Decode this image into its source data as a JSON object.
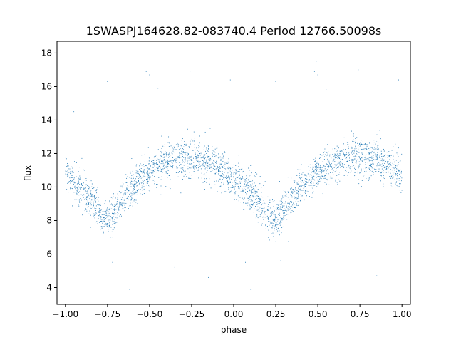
{
  "chart_data": {
    "type": "scatter",
    "title": "1SWASPJ164628.82-083740.4 Period 12766.50098s",
    "xlabel": "phase",
    "ylabel": "flux",
    "xlim": [
      -1.05,
      1.05
    ],
    "ylim": [
      3.0,
      18.7
    ],
    "xticks": [
      -1.0,
      -0.75,
      -0.5,
      -0.25,
      0.0,
      0.25,
      0.5,
      0.75,
      1.0
    ],
    "xtick_labels": [
      "−1.00",
      "−0.75",
      "−0.50",
      "−0.25",
      "0.00",
      "0.25",
      "0.50",
      "0.75",
      "1.00"
    ],
    "yticks": [
      4,
      6,
      8,
      10,
      12,
      14,
      16,
      18
    ],
    "ytick_labels": [
      "4",
      "6",
      "8",
      "10",
      "12",
      "14",
      "16",
      "18"
    ],
    "grid": false,
    "marker_color": "#1f77b4",
    "series": [
      {
        "x": [
          -1.0,
          -0.95,
          -0.9,
          -0.85,
          -0.8,
          -0.76,
          -0.7,
          -0.65,
          -0.6,
          -0.55,
          -0.5,
          -0.45,
          -0.4,
          -0.35,
          -0.3,
          -0.25,
          -0.2,
          -0.15,
          -0.1,
          -0.05,
          0.0,
          0.05,
          0.1,
          0.15,
          0.2,
          0.24,
          0.3,
          0.35,
          0.4,
          0.45,
          0.5,
          0.55,
          0.6,
          0.65,
          0.7,
          0.75,
          0.8,
          0.85,
          0.9,
          0.95,
          1.0
        ],
        "y": [
          10.8,
          10.3,
          9.8,
          9.2,
          8.5,
          7.9,
          8.7,
          9.5,
          10.0,
          10.5,
          10.9,
          11.2,
          11.5,
          11.7,
          11.8,
          11.8,
          11.7,
          11.5,
          11.2,
          10.9,
          10.5,
          10.2,
          9.7,
          9.1,
          8.4,
          7.9,
          8.7,
          9.4,
          10.0,
          10.5,
          10.9,
          11.2,
          11.4,
          11.6,
          11.8,
          11.8,
          11.8,
          11.7,
          11.4,
          11.1,
          10.8
        ],
        "scatter_sigma": 0.55
      }
    ],
    "outliers": [
      {
        "x": -0.52,
        "y": 16.9
      },
      {
        "x": -0.51,
        "y": 17.4
      },
      {
        "x": -0.5,
        "y": 16.7
      },
      {
        "x": -0.45,
        "y": 15.9
      },
      {
        "x": -0.26,
        "y": 16.9
      },
      {
        "x": -0.02,
        "y": 16.4
      },
      {
        "x": 0.48,
        "y": 16.9
      },
      {
        "x": 0.49,
        "y": 17.5
      },
      {
        "x": 0.5,
        "y": 16.7
      },
      {
        "x": 0.55,
        "y": 15.8
      },
      {
        "x": 0.74,
        "y": 17.0
      },
      {
        "x": 0.98,
        "y": 16.4
      },
      {
        "x": -0.75,
        "y": 16.3
      },
      {
        "x": 0.25,
        "y": 16.3
      },
      {
        "x": -0.95,
        "y": 14.5
      },
      {
        "x": 0.05,
        "y": 14.6
      },
      {
        "x": -0.35,
        "y": 5.2
      },
      {
        "x": 0.65,
        "y": 5.1
      },
      {
        "x": -0.15,
        "y": 4.6
      },
      {
        "x": 0.85,
        "y": 4.7
      },
      {
        "x": -0.72,
        "y": 5.5
      },
      {
        "x": 0.28,
        "y": 5.6
      },
      {
        "x": -0.93,
        "y": 5.7
      },
      {
        "x": 0.07,
        "y": 5.5
      },
      {
        "x": -0.18,
        "y": 17.7
      },
      {
        "x": -0.07,
        "y": 17.5
      },
      {
        "x": 0.1,
        "y": 3.9
      },
      {
        "x": -0.62,
        "y": 3.9
      }
    ]
  }
}
